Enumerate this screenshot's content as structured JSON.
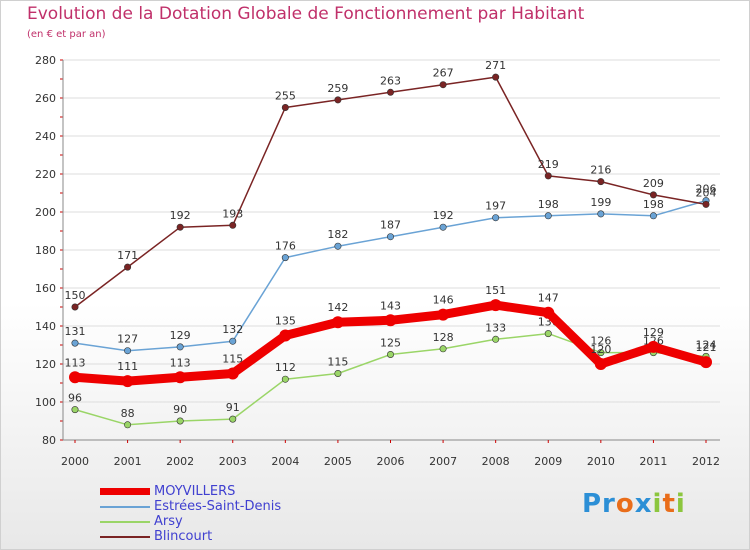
{
  "title": "Evolution de la Dotation Globale de Fonctionnement par Habitant",
  "subtitle": "(en € et par an)",
  "logo_text": "Proxiti",
  "colors": {
    "title": "#c0306a",
    "axis_text": "#333333",
    "grid": "#dddddd",
    "axis_tick": "#cc0000",
    "legend_text": "#4040d0"
  },
  "chart_data": {
    "type": "line",
    "title": "Evolution de la Dotation Globale de Fonctionnement par Habitant",
    "subtitle": "(en € et par an)",
    "xlabel": "",
    "ylabel": "",
    "ylim": [
      80,
      280
    ],
    "yticks": [
      80,
      100,
      120,
      140,
      160,
      180,
      200,
      220,
      240,
      260,
      280
    ],
    "categories": [
      "2000",
      "2001",
      "2002",
      "2003",
      "2004",
      "2005",
      "2006",
      "2007",
      "2008",
      "2009",
      "2010",
      "2011",
      "2012"
    ],
    "grid": "horizontal",
    "legend_position": "bottom-left",
    "series": [
      {
        "name": "MOYVILLERS",
        "color": "#ee0000",
        "highlight": true,
        "values": [
          113,
          111,
          113,
          115,
          135,
          142,
          143,
          146,
          151,
          147,
          120,
          129,
          121
        ]
      },
      {
        "name": "Estrées-Saint-Denis",
        "color": "#6aa3d5",
        "highlight": false,
        "values": [
          131,
          127,
          129,
          132,
          176,
          182,
          187,
          192,
          197,
          198,
          199,
          198,
          206
        ]
      },
      {
        "name": "Arsy",
        "color": "#9ad567",
        "highlight": false,
        "values": [
          96,
          88,
          90,
          91,
          112,
          115,
          125,
          128,
          133,
          136,
          126,
          126,
          124
        ]
      },
      {
        "name": "Blincourt",
        "color": "#7a2424",
        "highlight": false,
        "values": [
          150,
          171,
          192,
          193,
          255,
          259,
          263,
          267,
          271,
          219,
          216,
          209,
          204
        ]
      }
    ]
  }
}
